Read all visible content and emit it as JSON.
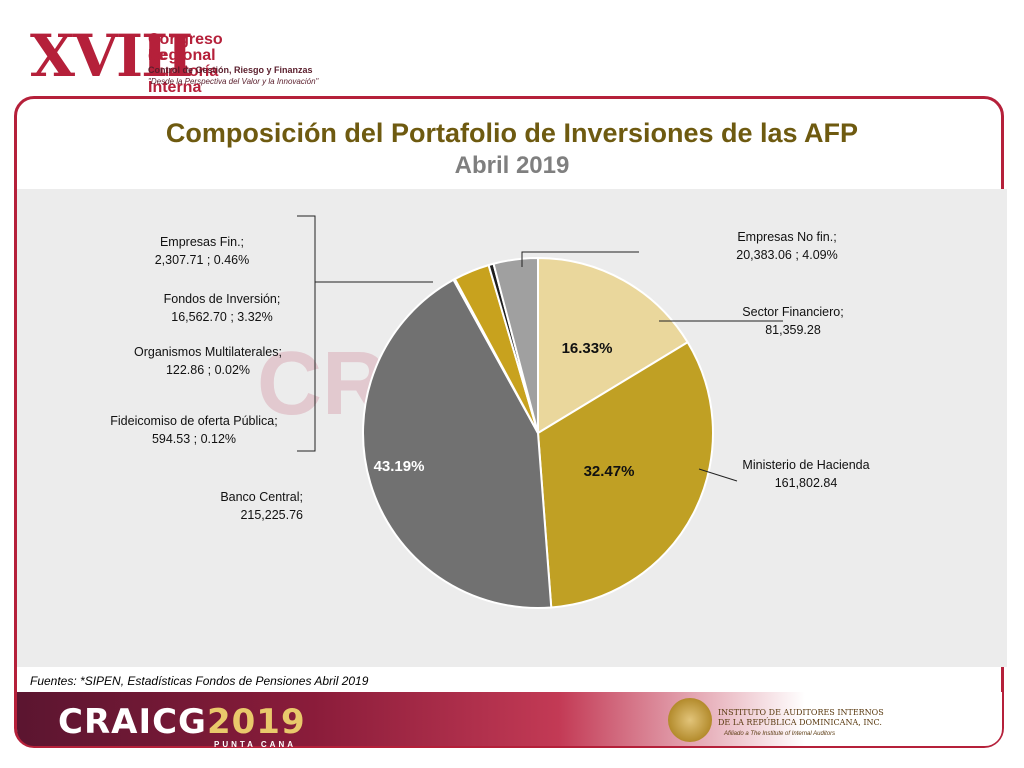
{
  "header_logo": {
    "number": "XVIII",
    "line1": "Congreso Regional",
    "line2": "de Auditoría Interna",
    "line3": "Control de Gestión, Riesgo y Finanzas",
    "line4": "\"Desde la Perspectiva del Valor y la Innovación\""
  },
  "footer": {
    "source": "Fuentes: *SIPEN, Estadísticas Fondos de Pensiones Abril 2019",
    "brand": "CRAICG",
    "year": "2019",
    "location": "PUNTA CANA",
    "institute_line1": "INSTITUTO DE AUDITORES INTERNOS",
    "institute_line2": "DE LA REPÚBLICA DOMINICANA, INC.",
    "institute_line3": "Afiliado a The Institute of Internal Auditors"
  },
  "colors": {
    "accent": "#b5203a",
    "title": "#6e5a10",
    "subtitle": "#7f7f7f"
  },
  "chart_data": {
    "type": "pie",
    "title": "Composición del Portafolio de Inversiones de las AFP",
    "subtitle": "Abril 2019",
    "slices": [
      {
        "label": "Sector Financiero;",
        "value": 81359.28,
        "value_text": "81,359.28",
        "percent_label": "16.33%",
        "color": "#ead79c"
      },
      {
        "label": "Ministerio de Hacienda",
        "value": 161802.84,
        "value_text": "161,802.84",
        "percent_label": "32.47%",
        "color": "#c0a024"
      },
      {
        "label": "Banco Central;",
        "value": 215225.76,
        "value_text": "215,225.76",
        "percent_label": "43.19%",
        "color": "#717171"
      },
      {
        "label": "Fideicomiso de oferta Pública;",
        "value": 594.53,
        "value_text": "594.53 ; 0.12%",
        "percent_label": "",
        "color": "#505050"
      },
      {
        "label": "Organismos Multilaterales;",
        "value": 122.86,
        "value_text": "122.86 ; 0.02%",
        "percent_label": "",
        "color": "#d8d8d8"
      },
      {
        "label": "Fondos de Inversión;",
        "value": 16562.7,
        "value_text": "16,562.70 ; 3.32%",
        "percent_label": "",
        "color": "#c8a21e"
      },
      {
        "label": "Empresas Fin.;",
        "value": 2307.71,
        "value_text": "2,307.71 ; 0.46%",
        "percent_label": "",
        "color": "#1e1e1e"
      },
      {
        "label": "Empresas No fin.;",
        "value": 20383.06,
        "value_text": "20,383.06 ; 4.09%",
        "percent_label": "",
        "color": "#a0a0a0"
      }
    ]
  }
}
